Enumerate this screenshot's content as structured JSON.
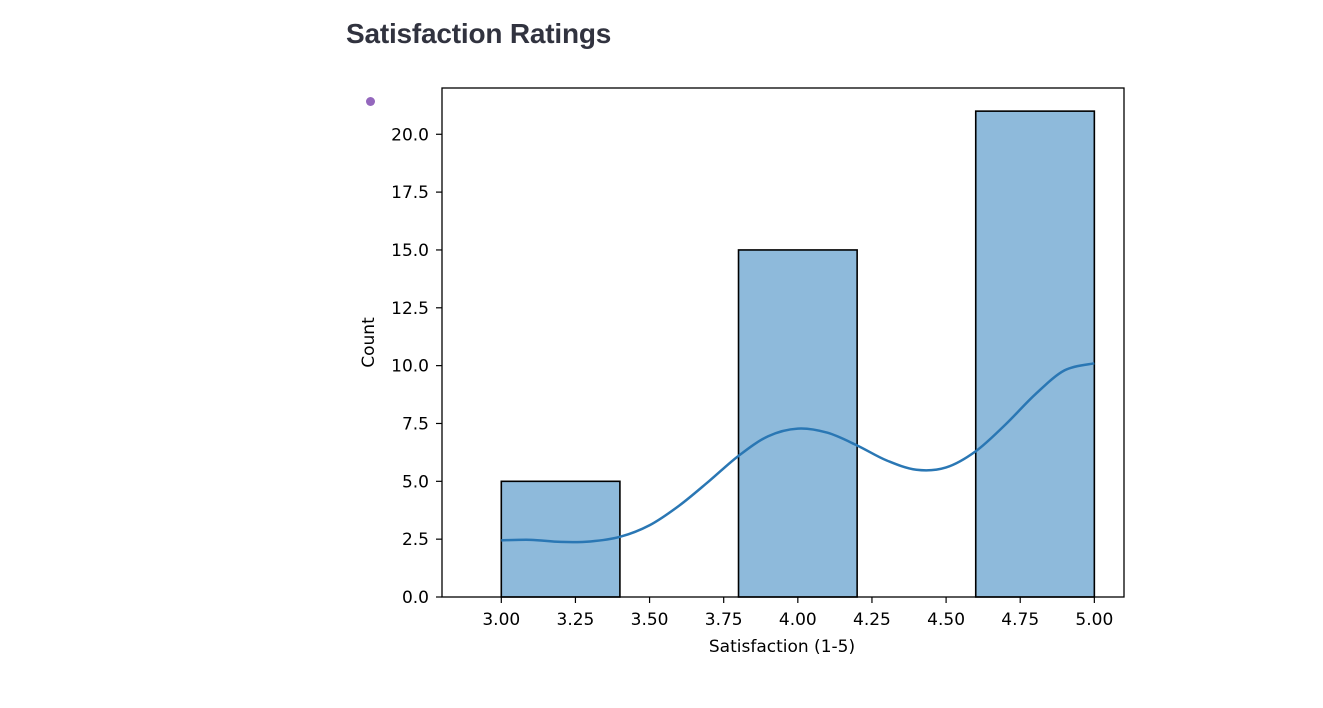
{
  "page": {
    "title": "Satisfaction Ratings"
  },
  "colors": {
    "bar_fill": "#8ebadb",
    "bar_edge": "#000000",
    "kde_line": "#2a77b4",
    "status_dot": "#9467bd",
    "title_text": "#31333f"
  },
  "chart_data": {
    "type": "bar",
    "subtype": "histogram-with-kde",
    "xlabel": "Satisfaction (1-5)",
    "ylabel": "Count",
    "xlim": [
      2.8,
      5.1
    ],
    "ylim": [
      0,
      22
    ],
    "xticks": [
      3.0,
      3.25,
      3.5,
      3.75,
      4.0,
      4.25,
      4.5,
      4.75,
      5.0
    ],
    "xtick_labels": [
      "3.00",
      "3.25",
      "3.50",
      "3.75",
      "4.00",
      "4.25",
      "4.50",
      "4.75",
      "5.00"
    ],
    "yticks": [
      0,
      2.5,
      5,
      7.5,
      10,
      12.5,
      15,
      17.5,
      20
    ],
    "ytick_labels": [
      "0.0",
      "2.5",
      "5.0",
      "7.5",
      "10.0",
      "12.5",
      "15.0",
      "17.5",
      "20.0"
    ],
    "bins": [
      {
        "x0": 3.0,
        "x1": 3.4,
        "count": 5
      },
      {
        "x0": 3.4,
        "x1": 3.8,
        "count": 0
      },
      {
        "x0": 3.8,
        "x1": 4.2,
        "count": 15
      },
      {
        "x0": 4.2,
        "x1": 4.6,
        "count": 0
      },
      {
        "x0": 4.6,
        "x1": 5.0,
        "count": 21
      }
    ],
    "kde": {
      "x": [
        3.0,
        3.1,
        3.2,
        3.3,
        3.4,
        3.5,
        3.6,
        3.7,
        3.8,
        3.9,
        4.0,
        4.1,
        4.2,
        4.3,
        4.4,
        4.5,
        4.6,
        4.7,
        4.8,
        4.9,
        5.0
      ],
      "y": [
        2.45,
        2.47,
        2.38,
        2.4,
        2.6,
        3.1,
        3.95,
        5.0,
        6.1,
        6.95,
        7.28,
        7.1,
        6.55,
        5.9,
        5.5,
        5.6,
        6.3,
        7.45,
        8.75,
        9.8,
        10.1
      ]
    },
    "grid": false,
    "legend": "none"
  }
}
